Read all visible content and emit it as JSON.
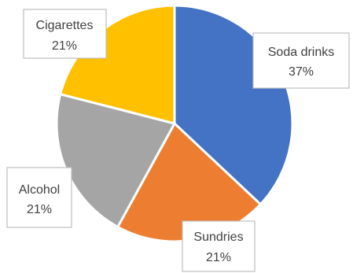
{
  "chart_data": {
    "type": "pie",
    "title": "",
    "categories": [
      "Soda drinks",
      "Sundries",
      "Alcohol",
      "Cigarettes"
    ],
    "values": [
      37,
      21,
      21,
      21
    ],
    "value_labels": [
      "37%",
      "21%",
      "21%",
      "21%"
    ],
    "colors": [
      "#4472C4",
      "#ED7D31",
      "#A5A5A5",
      "#FFC000"
    ],
    "start_angle": "12 o'clock",
    "direction": "clockwise",
    "data_labels": "callouts with category name and percentage",
    "legend": "none"
  }
}
